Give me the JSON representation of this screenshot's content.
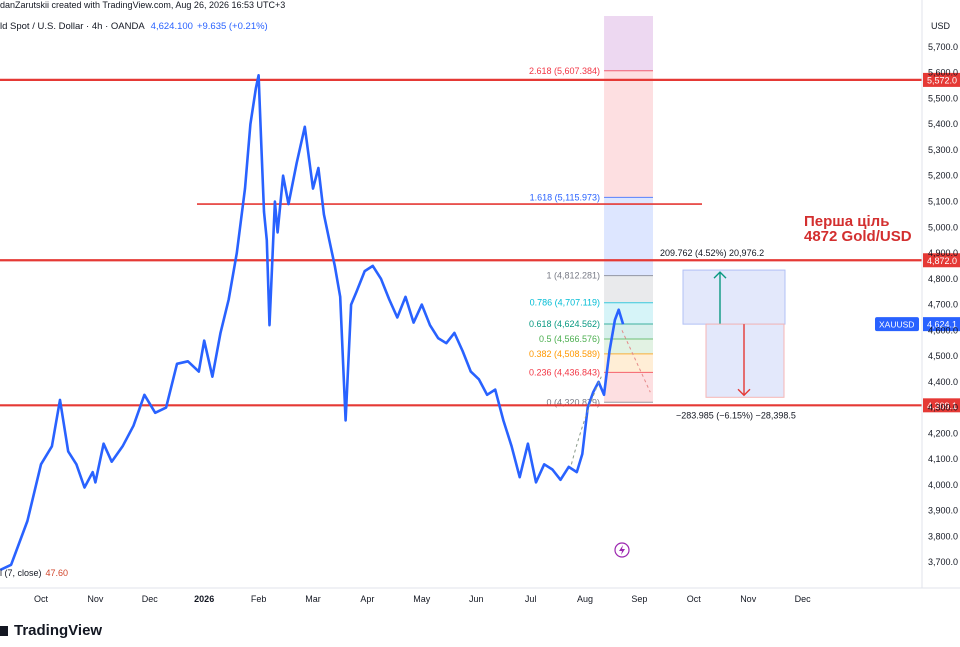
{
  "header": {
    "publish_line": "danZarutskii created with TradingView.com, Aug 26, 2026 16:53 UTC+3",
    "symbol": "ld Spot / U.S. Dollar · 4h · OANDA",
    "price": "4,624.100",
    "change": "+9.635 (+0.21%)"
  },
  "indicator": {
    "name": "l (7, close)",
    "value": "47.60"
  },
  "brand": "TradingView",
  "annotation": {
    "line1": "Перша ціль",
    "line2": "4872 Gold/USD"
  },
  "colors": {
    "price_line": "#2962ff",
    "level_line": "#e53935",
    "annotation": "#d32f2f",
    "long_box": "#e3e8fb",
    "short_box": "#e3e8fb"
  },
  "chart_data": {
    "type": "line",
    "axis_currency": "USD",
    "ylim": [
      3600,
      5820
    ],
    "y_ticks": [
      "5,700.0",
      "5,600.0",
      "5,500.0",
      "5,400.0",
      "5,300.0",
      "5,200.0",
      "5,100.0",
      "5,000.0",
      "4,900.0",
      "4,800.0",
      "4,700.0",
      "4,600.0",
      "4,500.0",
      "4,400.0",
      "4,300.0",
      "4,200.0",
      "4,100.0",
      "4,000.0",
      "3,900.0",
      "3,800.0",
      "3,700.0"
    ],
    "x_ticks": [
      "Oct",
      "Nov",
      "Dec",
      "2026",
      "Feb",
      "Mar",
      "Apr",
      "May",
      "Jun",
      "Jul",
      "Aug",
      "Sep",
      "Oct",
      "Nov",
      "Dec"
    ],
    "x_tick_month_index": [
      0,
      1,
      2,
      3,
      4,
      5,
      6,
      7,
      8,
      9,
      10,
      11,
      12,
      13,
      14
    ],
    "series": [
      {
        "month_index": [
          -0.75,
          -0.55,
          -0.25,
          0.0,
          0.2,
          0.35,
          0.5,
          0.65,
          0.8,
          0.95,
          1.0,
          1.15,
          1.3,
          1.5,
          1.7,
          1.9,
          2.1,
          2.3,
          2.5,
          2.7,
          2.9,
          3.0,
          3.15,
          3.3,
          3.45,
          3.6,
          3.75,
          3.85,
          3.95,
          4.0,
          4.05,
          4.1,
          4.15,
          4.2,
          4.3,
          4.35,
          4.45,
          4.55,
          4.7,
          4.85,
          5.0,
          5.1,
          5.2,
          5.3,
          5.4,
          5.5,
          5.6,
          5.7,
          5.8,
          5.95,
          6.1,
          6.25,
          6.4,
          6.55,
          6.7,
          6.85,
          7.0,
          7.15,
          7.3,
          7.45,
          7.6,
          7.75,
          7.9,
          8.05,
          8.2,
          8.35,
          8.5,
          8.65,
          8.8,
          8.95,
          9.1,
          9.25,
          9.4,
          9.55,
          9.7,
          9.85,
          9.95,
          10.05,
          10.15,
          10.25,
          10.35,
          10.45,
          10.55,
          10.62,
          10.7
        ],
        "values": [
          3670,
          3690,
          3860,
          4080,
          4150,
          4330,
          4130,
          4080,
          3990,
          4050,
          4010,
          4160,
          4090,
          4150,
          4230,
          4350,
          4280,
          4300,
          4470,
          4480,
          4440,
          4560,
          4420,
          4590,
          4720,
          4900,
          5150,
          5400,
          5540,
          5590,
          5320,
          5060,
          4950,
          4620,
          5100,
          4980,
          5200,
          5090,
          5250,
          5390,
          5150,
          5230,
          5050,
          4950,
          4850,
          4730,
          4250,
          4700,
          4750,
          4830,
          4850,
          4800,
          4720,
          4650,
          4730,
          4630,
          4700,
          4620,
          4570,
          4550,
          4590,
          4520,
          4440,
          4410,
          4350,
          4370,
          4250,
          4150,
          4030,
          4160,
          4010,
          4080,
          4060,
          4020,
          4070,
          4050,
          4120,
          4300,
          4360,
          4400,
          4350,
          4520,
          4640,
          4680,
          4624
        ]
      }
    ],
    "current_price": {
      "label": "XAUUSD",
      "value": "4,624.1"
    },
    "horizontal_levels": [
      {
        "value": 5572,
        "label": "5,572.0"
      },
      {
        "value": 4872,
        "label": "4,872.0"
      },
      {
        "value": 4309,
        "label": "4,309.1"
      },
      {
        "value": 5090,
        "label": ""
      }
    ],
    "fibonacci": {
      "start_month_index": 10.35,
      "end_month_index": 11.25,
      "levels": [
        {
          "ratio": 0,
          "price": 4320.879,
          "label": "0 (4,320.879)",
          "color": "#787b86"
        },
        {
          "ratio": 0.236,
          "price": 4436.843,
          "label": "0.236 (4,436.843)",
          "color": "#f23645"
        },
        {
          "ratio": 0.382,
          "price": 4508.589,
          "label": "0.382 (4,508.589)",
          "color": "#ff9800"
        },
        {
          "ratio": 0.5,
          "price": 4566.576,
          "label": "0.5 (4,566.576)",
          "color": "#4caf50"
        },
        {
          "ratio": 0.618,
          "price": 4624.562,
          "label": "0.618 (4,624.562)",
          "color": "#089981"
        },
        {
          "ratio": 0.786,
          "price": 4707.119,
          "label": "0.786 (4,707.119)",
          "color": "#00bcd4"
        },
        {
          "ratio": 1,
          "price": 4812.281,
          "label": "1 (4,812.281)",
          "color": "#787b86"
        },
        {
          "ratio": 1.618,
          "price": 5115.973,
          "label": "1.618 (5,115.973)",
          "color": "#2962ff"
        },
        {
          "ratio": 2.618,
          "price": 5607.384,
          "label": "2.618 (5,607.384)",
          "color": "#f23645"
        }
      ]
    },
    "long_position": {
      "entry": 4624.1,
      "target": 4833.862,
      "label": "209.762 (4.52%) 20,976.2"
    },
    "short_position": {
      "entry": 4624.1,
      "target": 4340.115,
      "label": "−283.985 (−6.15%) −28,398.5"
    }
  }
}
